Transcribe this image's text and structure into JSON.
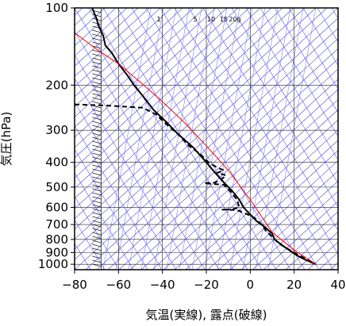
{
  "chart_data": {
    "type": "line",
    "title": "",
    "xlabel": "気温(実線), 露点(破線)",
    "ylabel": "気圧(hPa)",
    "xlim": [
      -80,
      40
    ],
    "ylim": [
      1050,
      100
    ],
    "yscale": "log",
    "xticks": [
      -80,
      -60,
      -40,
      -20,
      0,
      20,
      40
    ],
    "yticks": [
      100,
      200,
      300,
      400,
      500,
      600,
      700,
      800,
      900,
      1000
    ],
    "grid": true,
    "mixing_ratio_labels": [
      "1",
      "5",
      "10",
      "15",
      "20g"
    ],
    "series": [
      {
        "style": "solid",
        "color": "#000000",
        "points": [
          [
            -72,
            100
          ],
          [
            -70,
            110
          ],
          [
            -69,
            118
          ],
          [
            -67,
            128
          ],
          [
            -66,
            140
          ],
          [
            -63,
            150
          ],
          [
            -60,
            165
          ],
          [
            -56,
            183
          ],
          [
            -53,
            200
          ],
          [
            -49,
            220
          ],
          [
            -44,
            250
          ],
          [
            -38,
            280
          ],
          [
            -33,
            310
          ],
          [
            -26,
            350
          ],
          [
            -20,
            400
          ],
          [
            -16,
            440
          ],
          [
            -12,
            480
          ],
          [
            -8,
            520
          ],
          [
            -5,
            560
          ],
          [
            -3,
            600
          ],
          [
            0,
            640
          ],
          [
            3,
            680
          ],
          [
            7,
            720
          ],
          [
            10,
            760
          ],
          [
            11,
            800
          ],
          [
            16,
            860
          ],
          [
            21,
            920
          ],
          [
            25,
            960
          ],
          [
            30,
            1000
          ]
        ]
      },
      {
        "style": "dashed",
        "color": "#000000",
        "points": [
          [
            -80,
            238
          ],
          [
            -66,
            240
          ],
          [
            -49,
            245
          ],
          [
            -43,
            260
          ],
          [
            -38,
            285
          ],
          [
            -33,
            310
          ],
          [
            -28,
            345
          ],
          [
            -23,
            370
          ],
          [
            -19,
            400
          ],
          [
            -15,
            420
          ],
          [
            -12,
            430
          ],
          [
            -15,
            440
          ],
          [
            -11,
            450
          ],
          [
            -13,
            465
          ],
          [
            -16,
            480
          ],
          [
            -21,
            483
          ],
          [
            -12,
            490
          ],
          [
            -9,
            520
          ],
          [
            -6,
            560
          ],
          [
            -5,
            600
          ],
          [
            -8,
            610
          ],
          [
            -13,
            612
          ],
          [
            -6,
            615
          ],
          [
            -2,
            635
          ],
          [
            2,
            660
          ],
          [
            6,
            710
          ],
          [
            7,
            740
          ],
          [
            10,
            780
          ],
          [
            13,
            830
          ],
          [
            18,
            880
          ],
          [
            22,
            920
          ],
          [
            26,
            960
          ],
          [
            29,
            1000
          ]
        ]
      },
      {
        "style": "solid",
        "color": "#ff0000",
        "points": [
          [
            -80,
            125
          ],
          [
            -70,
            145
          ],
          [
            -60,
            165
          ],
          [
            -50,
            195
          ],
          [
            -40,
            232
          ],
          [
            -30,
            280
          ],
          [
            -20,
            345
          ],
          [
            -10,
            430
          ],
          [
            0,
            560
          ],
          [
            10,
            750
          ],
          [
            20,
            880
          ],
          [
            30,
            1000
          ]
        ]
      }
    ],
    "wind_barbs_x": -73
  }
}
